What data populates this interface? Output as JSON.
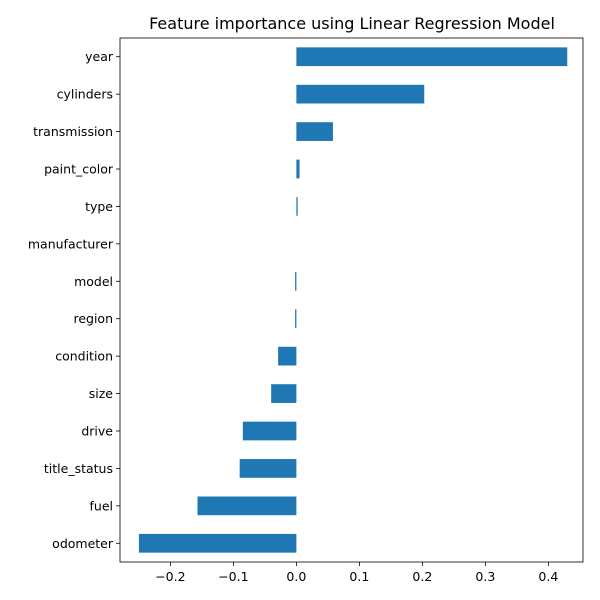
{
  "chart_data": {
    "type": "bar",
    "orientation": "horizontal",
    "title": "Feature importance using Linear Regression Model",
    "xlabel": "",
    "ylabel": "",
    "categories": [
      "year",
      "cylinders",
      "transmission",
      "paint_color",
      "type",
      "manufacturer",
      "model",
      "region",
      "condition",
      "size",
      "drive",
      "title_status",
      "fuel",
      "odometer"
    ],
    "values": [
      0.43,
      0.203,
      0.058,
      0.005,
      0.002,
      0.0,
      -0.002,
      -0.002,
      -0.029,
      -0.04,
      -0.085,
      -0.09,
      -0.157,
      -0.25
    ],
    "xlim": [
      -0.28,
      0.455
    ],
    "xticks": [
      -0.2,
      -0.1,
      0.0,
      0.1,
      0.2,
      0.3,
      0.4
    ],
    "xtick_labels": [
      "−0.2",
      "−0.1",
      "0.0",
      "0.1",
      "0.2",
      "0.3",
      "0.4"
    ],
    "grid": false,
    "legend": "none",
    "bar_color": "#1f77b4"
  }
}
